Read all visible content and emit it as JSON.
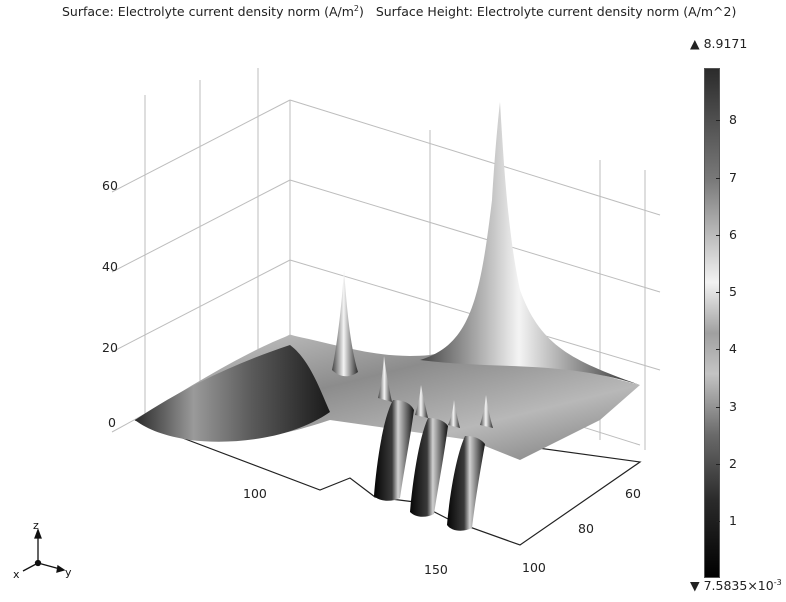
{
  "chart_data": {
    "type": "surface",
    "title": "Surface: Electrolyte current density norm (A/m²)   Surface Height: Electrolyte current density norm (A/m^2)",
    "title_parts": {
      "part1_prefix": "Surface: Electrolyte current density norm (A/m",
      "part1_sup": "2",
      "part1_suffix": ")",
      "part2": "Surface Height: Electrolyte current density norm (A/m^2)"
    },
    "z_ticks": [
      0,
      20,
      40,
      60
    ],
    "x_ticks": [
      100,
      150
    ],
    "y_ticks": [
      60,
      80,
      100
    ],
    "colorbar": {
      "max_label": "▲ 8.9171",
      "min_prefix": "▼ 7.5835×10",
      "min_sup": "-3",
      "ticks": [
        1,
        2,
        3,
        4,
        5,
        6,
        7,
        8
      ],
      "range": [
        0.0075835,
        8.9171
      ]
    },
    "triad": {
      "z": "z",
      "x": "x",
      "y": "y"
    },
    "colors": {
      "surface_dark": "#111111",
      "surface_light": "#f2f2f2",
      "grid": "#bdbdbd"
    }
  }
}
